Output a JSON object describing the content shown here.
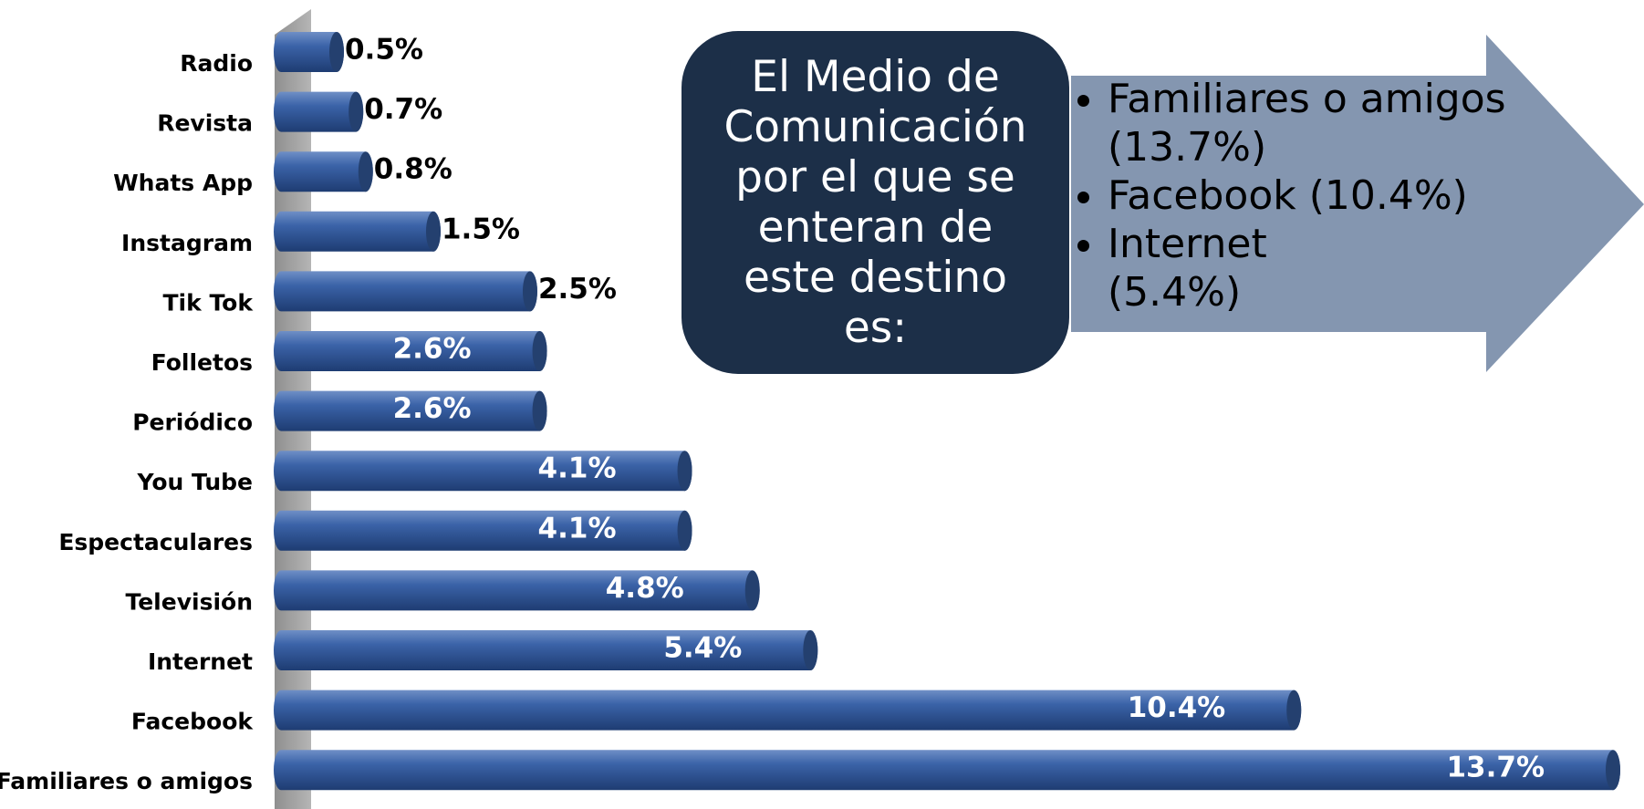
{
  "chart_data": {
    "type": "bar",
    "orientation": "horizontal",
    "categories": [
      "Radio",
      "Revista",
      "Whats App",
      "Instagram",
      "Tik Tok",
      "Folletos",
      "Periódico",
      "You Tube",
      "Espectaculares",
      "Televisión",
      "Internet",
      "Facebook",
      "Familiares o amigos"
    ],
    "values": [
      0.5,
      0.7,
      0.8,
      1.5,
      2.5,
      2.6,
      2.6,
      4.1,
      4.1,
      4.8,
      5.4,
      10.4,
      13.7
    ],
    "value_labels": [
      "0.5%",
      "0.7%",
      "0.8%",
      "1.5%",
      "2.5%",
      "2.6%",
      "2.6%",
      "4.1%",
      "4.1%",
      "4.8%",
      "5.4%",
      "10.4%",
      "13.7%"
    ],
    "color": "#2f5597"
  },
  "callout": {
    "text": "El Medio de Comunicación por el que se enteran de este destino es:",
    "bullets": [
      "Familiares o amigos (13.7%)",
      "Facebook (10.4%)",
      "Internet (5.4%)"
    ]
  }
}
